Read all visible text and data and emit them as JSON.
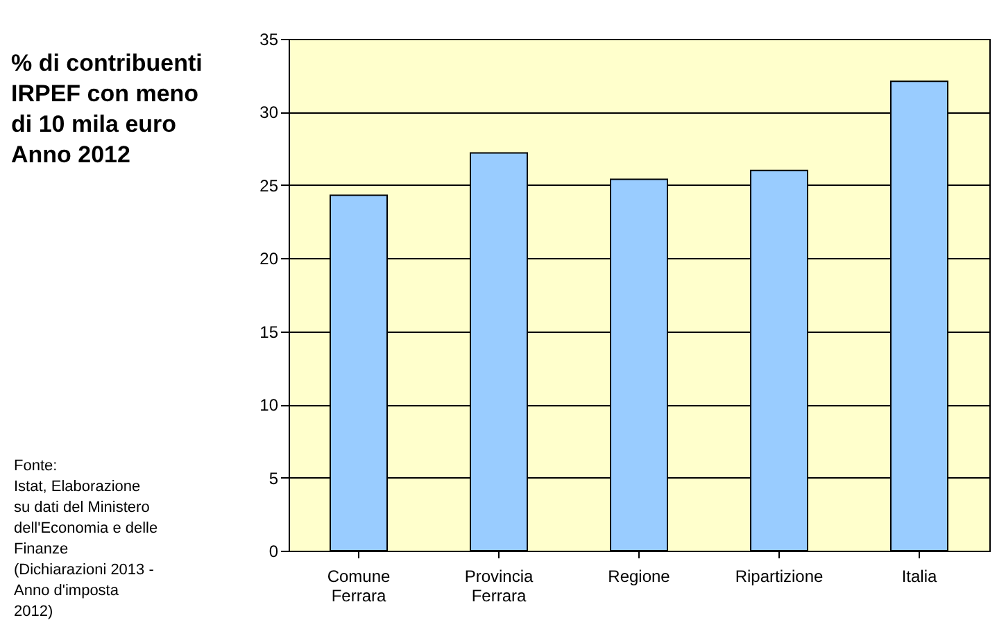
{
  "chart_data": {
    "type": "bar",
    "title": "% di contribuenti\nIRPEF con meno\ndi 10 mila euro\nAnno 2012",
    "categories": [
      "Comune Ferrara",
      "Provincia Ferrara",
      "Regione",
      "Ripartizione",
      "Italia"
    ],
    "values": [
      24.3,
      27.2,
      25.4,
      26.0,
      32.1
    ],
    "color": "#99ccff",
    "ylim": [
      0,
      35
    ],
    "yticks": [
      0,
      5,
      10,
      15,
      20,
      25,
      30,
      35
    ],
    "grid": "y",
    "annotations": [
      "Fonte:\nIstat, Elaborazione\nsu dati del Ministero\ndell'Economia e delle\nFinanze\n(Dichiarazioni 2013 -\nAnno d'imposta\n2012)"
    ]
  }
}
